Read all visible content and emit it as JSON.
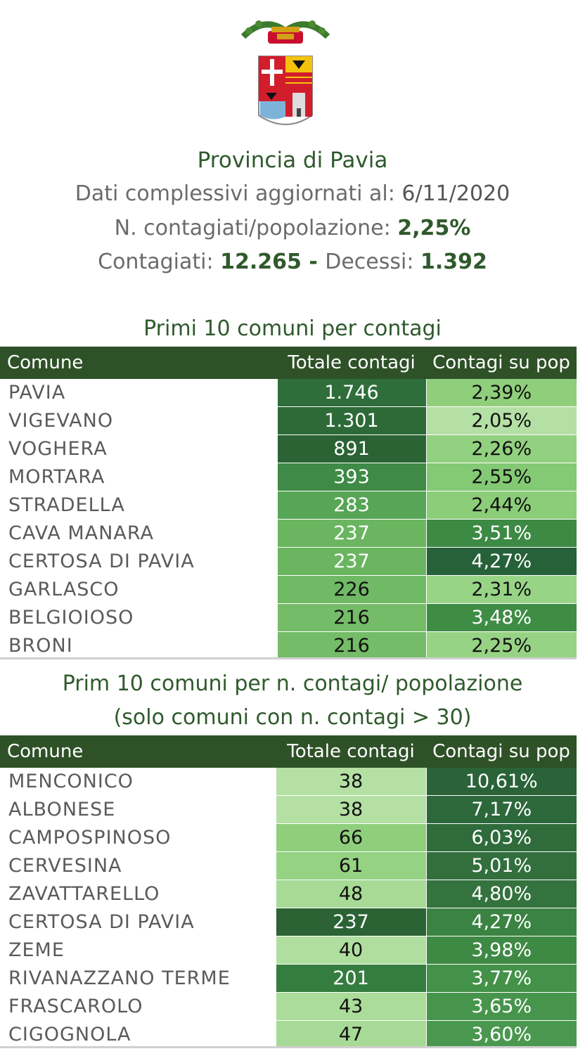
{
  "header": {
    "title": "Provincia di Pavia",
    "line1_label": "Dati complessivi aggiornati al: ",
    "line1_value": "6/11/2020",
    "line2_label": "N. contagiati/popolazione: ",
    "line2_value": "2,25%",
    "line3_label1": "Contagiati:  ",
    "line3_value1": "12.265",
    "line3_sep": " - ",
    "line3_label2": "Decessi: ",
    "line3_value2": "1.392"
  },
  "table1": {
    "title": "Primi 10 comuni per contagi",
    "columns": [
      "Comune",
      "Totale contagi",
      "Contagi su pop"
    ],
    "rows": [
      {
        "comune": "PAVIA",
        "totale": "1.746",
        "pop": "2,39%",
        "c_tot": "#2f6e3a",
        "c_pop": "#8fcf7c"
      },
      {
        "comune": "VIGEVANO",
        "totale": "1.301",
        "pop": "2,05%",
        "c_tot": "#2d6a37",
        "c_pop": "#b5e0a5"
      },
      {
        "comune": "VOGHERA",
        "totale": "891",
        "pop": "2,26%",
        "c_tot": "#2b6334",
        "c_pop": "#92d17f"
      },
      {
        "comune": "MORTARA",
        "totale": "393",
        "pop": "2,55%",
        "c_tot": "#3e8a46",
        "c_pop": "#84c974"
      },
      {
        "comune": "STRADELLA",
        "totale": "283",
        "pop": "2,44%",
        "c_tot": "#57a556",
        "c_pop": "#8ccd79"
      },
      {
        "comune": "CAVA MANARA",
        "totale": "237",
        "pop": "3,51%",
        "c_tot": "#6bb561",
        "c_pop": "#3d8a44"
      },
      {
        "comune": "CERTOSA DI PAVIA",
        "totale": "237",
        "pop": "4,27%",
        "c_tot": "#6bb561",
        "c_pop": "#26613a"
      },
      {
        "comune": "GARLASCO",
        "totale": "226",
        "pop": "2,31%",
        "c_tot": "#70b965",
        "c_pop": "#98d486"
      },
      {
        "comune": "BELGIOIOSO",
        "totale": "216",
        "pop": "3,48%",
        "c_tot": "#74bc68",
        "c_pop": "#3f8c45"
      },
      {
        "comune": "BRONI",
        "totale": "216",
        "pop": "2,25%",
        "c_tot": "#74bc68",
        "c_pop": "#97d385"
      }
    ]
  },
  "table2": {
    "title_line1": "Prim 10 comuni per n. contagi/ popolazione",
    "title_line2": "(solo comuni con n. contagi > 30)",
    "columns": [
      "Comune",
      "Totale contagi",
      "Contagi su pop"
    ],
    "rows": [
      {
        "comune": "MENCONICO",
        "totale": "38",
        "pop": "10,61%",
        "c_tot": "#b4e0a3",
        "c_pop": "#2a6338"
      },
      {
        "comune": "ALBONESE",
        "totale": "38",
        "pop": "7,17%",
        "c_tot": "#b4e0a3",
        "c_pop": "#2d683a"
      },
      {
        "comune": "CAMPOSPINOSO",
        "totale": "66",
        "pop": "6,03%",
        "c_tot": "#8fcf7c",
        "c_pop": "#2f6b3b"
      },
      {
        "comune": "CERVESINA",
        "totale": "61",
        "pop": "5,01%",
        "c_tot": "#95d282",
        "c_pop": "#326f3d"
      },
      {
        "comune": "ZAVATTARELLO",
        "totale": "48",
        "pop": "4,80%",
        "c_tot": "#a6da95",
        "c_pop": "#34723e"
      },
      {
        "comune": "CERTOSA DI PAVIA",
        "totale": "237",
        "pop": "4,27%",
        "c_tot": "#2b6334",
        "c_pop": "#3a8342"
      },
      {
        "comune": "ZEME",
        "totale": "40",
        "pop": "3,98%",
        "c_tot": "#b0de9f",
        "c_pop": "#3e8a45"
      },
      {
        "comune": "RIVANAZZANO TERME",
        "totale": "201",
        "pop": "3,77%",
        "c_tot": "#357d3f",
        "c_pop": "#449149"
      },
      {
        "comune": "FRASCAROLO",
        "totale": "43",
        "pop": "3,65%",
        "c_tot": "#abdc99",
        "c_pop": "#47954c"
      },
      {
        "comune": "CIGOGNOLA",
        "totale": "47",
        "pop": "3,60%",
        "c_tot": "#a7da96",
        "c_pop": "#4a984f"
      }
    ]
  }
}
